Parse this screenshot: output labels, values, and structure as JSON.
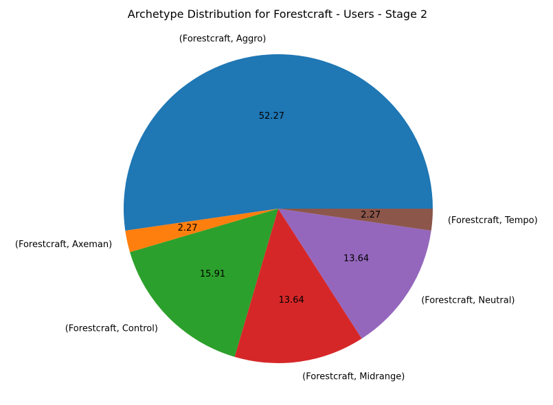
{
  "chart_data": {
    "type": "pie",
    "title": "Archetype Distribution for Forestcraft - Users - Stage 2",
    "start_angle_deg": 0,
    "direction": "counterclockwise",
    "legend": "none",
    "slices": [
      {
        "label": "(Forestcraft, Aggro)",
        "value": 52.27,
        "value_label": "52.27",
        "color": "#1f77b4"
      },
      {
        "label": "(Forestcraft, Axeman)",
        "value": 2.27,
        "value_label": "2.27",
        "color": "#ff7f0e"
      },
      {
        "label": "(Forestcraft, Control)",
        "value": 15.91,
        "value_label": "15.91",
        "color": "#2ca02c"
      },
      {
        "label": "(Forestcraft, Midrange)",
        "value": 13.64,
        "value_label": "13.64",
        "color": "#d62728"
      },
      {
        "label": "(Forestcraft, Neutral)",
        "value": 13.64,
        "value_label": "13.64",
        "color": "#9467bd"
      },
      {
        "label": "(Forestcraft, Tempo)",
        "value": 2.27,
        "value_label": "2.27",
        "color": "#8c564b"
      }
    ]
  }
}
